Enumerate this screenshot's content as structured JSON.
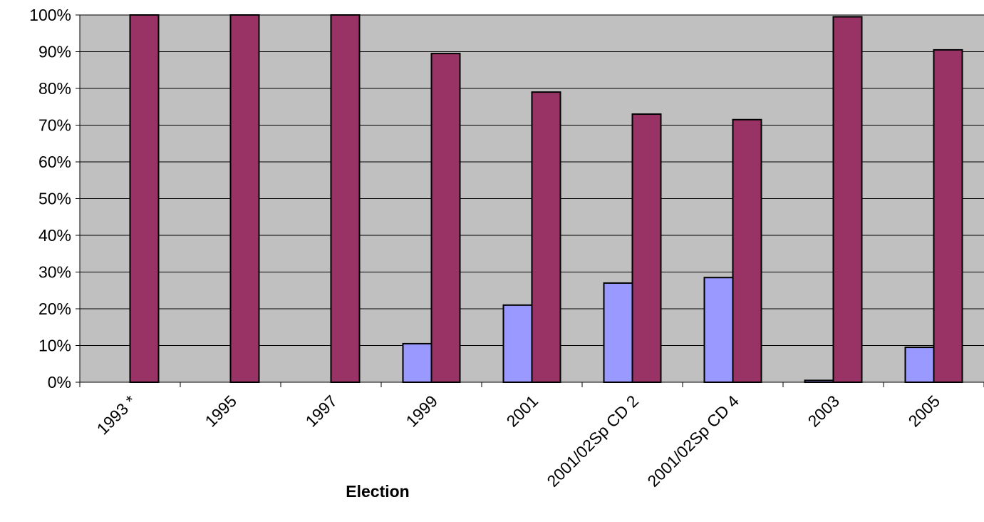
{
  "chart_data": {
    "type": "bar",
    "title": "",
    "xlabel": "Election",
    "ylabel": "",
    "ylim": [
      0,
      100
    ],
    "y_ticks": [
      "0%",
      "10%",
      "20%",
      "30%",
      "40%",
      "50%",
      "60%",
      "70%",
      "80%",
      "90%",
      "100%"
    ],
    "categories": [
      "1993 *",
      "1995",
      "1997",
      "1999",
      "2001",
      "2001/02Sp CD 2",
      "2001/02Sp CD 4",
      "2003",
      "2005"
    ],
    "series": [
      {
        "values": [
          0,
          0,
          0,
          10.5,
          21,
          27,
          28.5,
          0.5,
          9.5
        ],
        "color": "#9999ff"
      },
      {
        "values": [
          100,
          100,
          100,
          89.5,
          79,
          73,
          71.5,
          99.5,
          90.5
        ],
        "color": "#993366"
      }
    ],
    "plot_background": "#c0c0c0",
    "grid": true,
    "legend": "none"
  }
}
